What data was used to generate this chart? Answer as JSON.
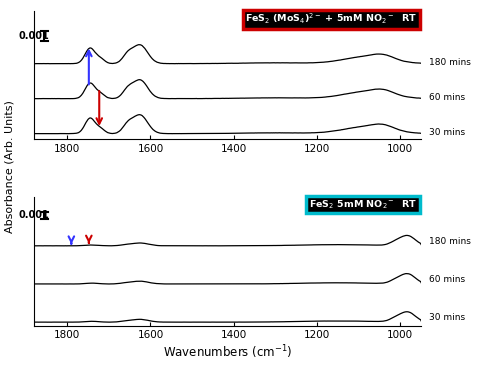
{
  "title_top": "FeS$_2$ (MoS$_4$)$^{2-}$ + 5mM NO$_2$$^-$  RT",
  "title_bottom": "FeS$_2$ 5mM NO$_2$$^-$  RT",
  "xlabel": "Wavenumbers (cm$^{-1}$)",
  "ylabel": "Absorbance (Arb. Units)",
  "xmin": 950,
  "xmax": 1880,
  "xticks": [
    1800,
    1600,
    1400,
    1200,
    1000
  ],
  "time_labels": [
    "180 mins",
    "60 mins",
    "30 mins"
  ],
  "scale_label": "0.001",
  "top_box_facecolor": "black",
  "top_box_edgecolor": "#cc0000",
  "bottom_box_facecolor": "black",
  "bottom_box_edgecolor": "#00bbcc",
  "line_color": "black",
  "linewidth": 0.9,
  "arrow_blue_color": "#3333ff",
  "arrow_red_color": "#cc0000"
}
